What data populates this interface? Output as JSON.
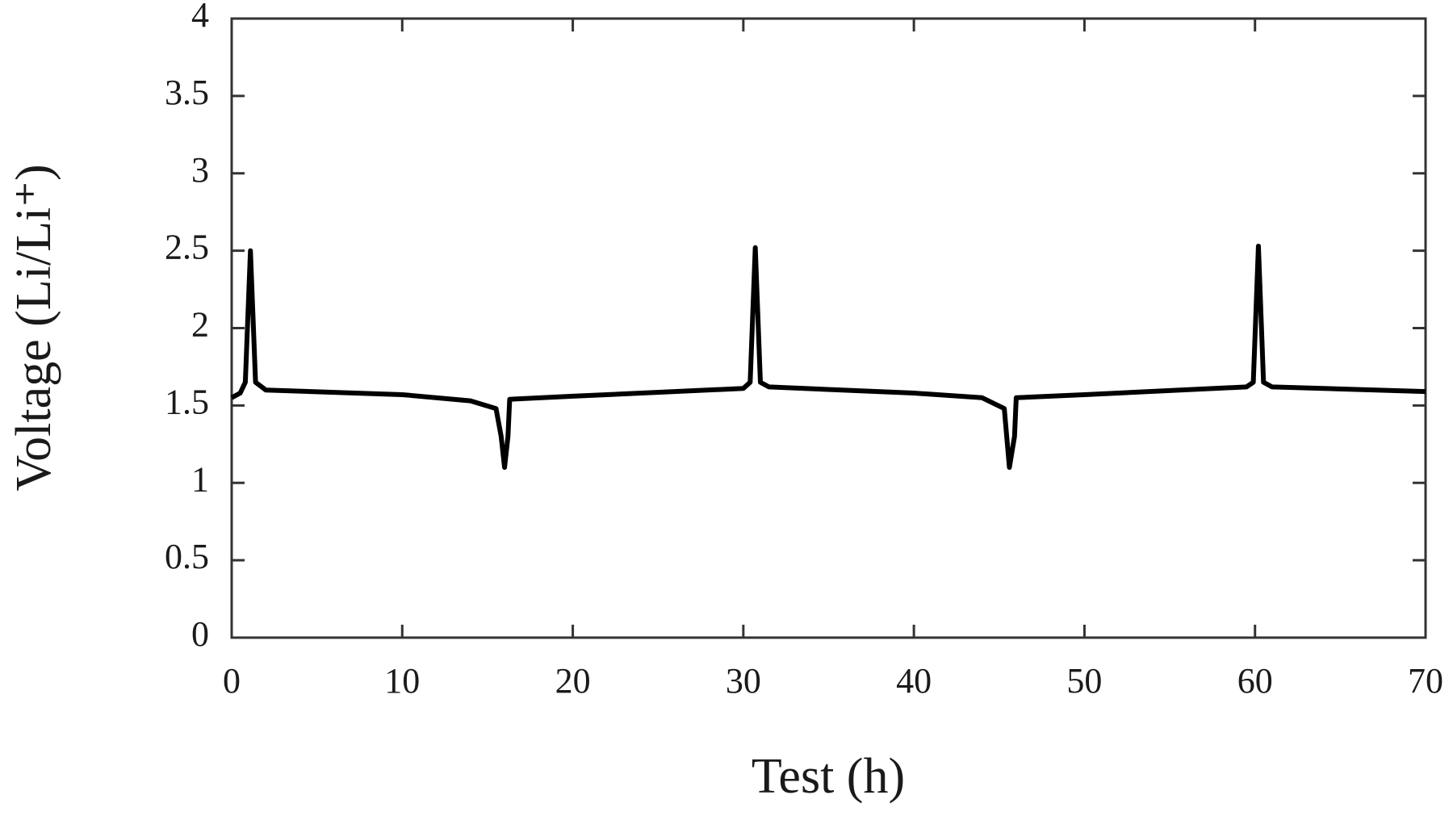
{
  "chart_data": {
    "type": "line",
    "xlabel": "Test (h)",
    "ylabel": "Voltage (Li/Li⁺)",
    "x": [
      0,
      0.5,
      0.8,
      1.1,
      1.4,
      2,
      10,
      14,
      15.5,
      15.8,
      16,
      16.2,
      16.3,
      20,
      30,
      30.4,
      30.7,
      31,
      31.5,
      40,
      44,
      45.3,
      45.6,
      45.9,
      46,
      50,
      59.5,
      59.9,
      60.2,
      60.5,
      61,
      70
    ],
    "series": [
      {
        "color": "#000000",
        "values": [
          1.55,
          1.58,
          1.65,
          2.5,
          1.65,
          1.6,
          1.57,
          1.53,
          1.48,
          1.3,
          1.1,
          1.3,
          1.54,
          1.56,
          1.61,
          1.65,
          2.52,
          1.65,
          1.62,
          1.58,
          1.55,
          1.48,
          1.1,
          1.3,
          1.55,
          1.57,
          1.62,
          1.65,
          2.53,
          1.65,
          1.62,
          1.59
        ]
      }
    ],
    "xlim": [
      0,
      70
    ],
    "xticks": [
      0,
      10,
      20,
      30,
      40,
      50,
      60,
      70
    ],
    "ylim": [
      0,
      4
    ],
    "yticks": [
      0,
      0.5,
      1,
      1.5,
      2,
      2.5,
      3,
      3.5,
      4
    ],
    "grid": false
  }
}
